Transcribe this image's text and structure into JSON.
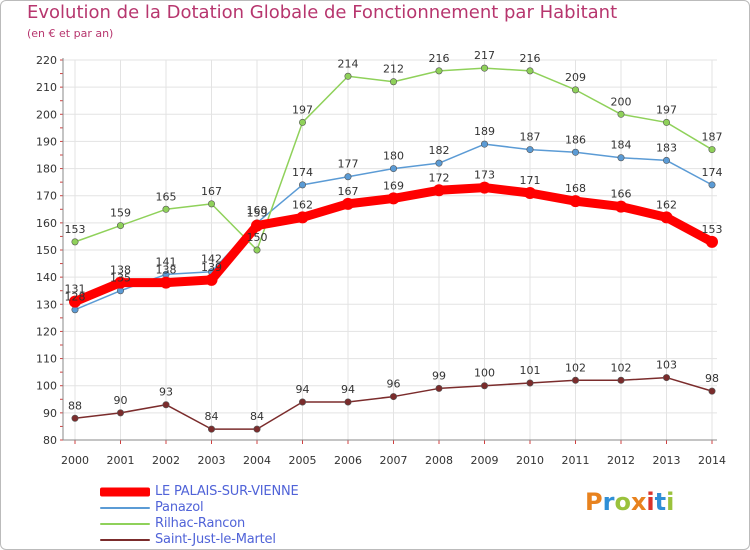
{
  "title": "Evolution de la Dotation Globale de Fonctionnement par Habitant",
  "subtitle": "(en € et par an)",
  "logo": {
    "letters": [
      "P",
      "r",
      "o",
      "x",
      "i",
      "t",
      "i"
    ],
    "colors": [
      "#e8821e",
      "#2f8fd6",
      "#9ac23c",
      "#e8821e",
      "#d9342b",
      "#2f8fd6",
      "#9ac23c"
    ]
  },
  "chart_data": {
    "type": "line",
    "x": [
      "2000",
      "2001",
      "2002",
      "2003",
      "2004",
      "2005",
      "2006",
      "2007",
      "2008",
      "2009",
      "2010",
      "2011",
      "2012",
      "2013",
      "2014"
    ],
    "ylim": [
      80,
      220
    ],
    "yticks": [
      80,
      90,
      100,
      110,
      120,
      130,
      140,
      150,
      160,
      170,
      180,
      190,
      200,
      210,
      220
    ],
    "grid": true,
    "legend": "bottom-left",
    "series": [
      {
        "name": "LE PALAIS-SUR-VIENNE",
        "color": "#ff0000",
        "values": [
          131,
          138,
          138,
          139,
          159,
          162,
          167,
          169,
          172,
          173,
          171,
          168,
          166,
          162,
          153
        ],
        "labels": [
          "131",
          "138",
          "138",
          "139",
          "159",
          "162",
          "167",
          "169",
          "172",
          "173",
          "171",
          "168",
          "166",
          "162",
          "153"
        ]
      },
      {
        "name": "Panazol",
        "color": "#5b9bd5",
        "values": [
          128,
          135,
          141,
          142,
          160,
          174,
          177,
          180,
          182,
          189,
          187,
          186,
          184,
          183,
          174
        ],
        "labels": [
          "128",
          "135",
          "141",
          "142",
          "160",
          "174",
          "177",
          "180",
          "182",
          "189",
          "187",
          "186",
          "184",
          "183",
          "174"
        ]
      },
      {
        "name": "Rilhac-Rancon",
        "color": "#8fd15a",
        "values": [
          153,
          159,
          165,
          167,
          150,
          197,
          214,
          212,
          216,
          217,
          216,
          209,
          200,
          197,
          187
        ],
        "labels": [
          "153",
          "159",
          "165",
          "167",
          "150",
          "197",
          "214",
          "212",
          "216",
          "217",
          "216",
          "209",
          "200",
          "197",
          "187"
        ]
      },
      {
        "name": "Saint-Just-le-Martel",
        "color": "#7b2c2c",
        "values": [
          88,
          90,
          93,
          84,
          84,
          94,
          94,
          96,
          99,
          100,
          101,
          102,
          102,
          103,
          98
        ],
        "labels": [
          "88",
          "90",
          "93",
          "84",
          "84",
          "94",
          "94",
          "96",
          "99",
          "100",
          "101",
          "102",
          "102",
          "103",
          "98"
        ]
      }
    ]
  }
}
